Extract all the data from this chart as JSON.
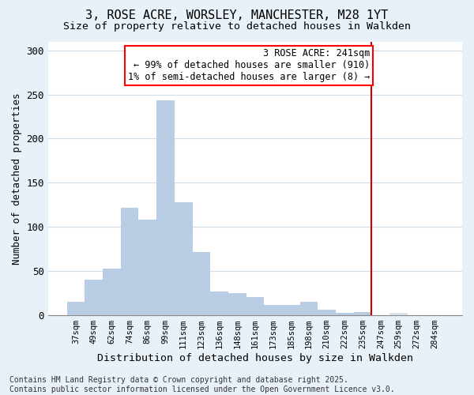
{
  "title": "3, ROSE ACRE, WORSLEY, MANCHESTER, M28 1YT",
  "subtitle": "Size of property relative to detached houses in Walkden",
  "xlabel": "Distribution of detached houses by size in Walkden",
  "ylabel": "Number of detached properties",
  "categories": [
    "37sqm",
    "49sqm",
    "62sqm",
    "74sqm",
    "86sqm",
    "99sqm",
    "111sqm",
    "123sqm",
    "136sqm",
    "148sqm",
    "161sqm",
    "173sqm",
    "185sqm",
    "198sqm",
    "210sqm",
    "222sqm",
    "235sqm",
    "247sqm",
    "259sqm",
    "272sqm",
    "284sqm"
  ],
  "values": [
    15,
    40,
    53,
    122,
    108,
    243,
    128,
    72,
    27,
    25,
    21,
    12,
    12,
    15,
    6,
    3,
    4,
    0,
    3,
    0
  ],
  "bar_color": "#b8cce4",
  "bar_color_right": "#d6e4f0",
  "annotation_box_text": "3 ROSE ACRE: 241sqm\n← 99% of detached houses are smaller (910)\n1% of semi-detached houses are larger (8) →",
  "vline_color": "#cc0000",
  "vline_position": 16.5,
  "ylim": [
    0,
    310
  ],
  "yticks": [
    0,
    50,
    100,
    150,
    200,
    250,
    300
  ],
  "background_color": "#e8f0f8",
  "plot_bg_color": "#ffffff",
  "grid_color": "#d0dce8",
  "footer_text": "Contains HM Land Registry data © Crown copyright and database right 2025.\nContains public sector information licensed under the Open Government Licence v3.0.",
  "title_fontsize": 11,
  "subtitle_fontsize": 9.5,
  "xlabel_fontsize": 9.5,
  "ylabel_fontsize": 9,
  "annotation_fontsize": 8.5,
  "footer_fontsize": 7
}
